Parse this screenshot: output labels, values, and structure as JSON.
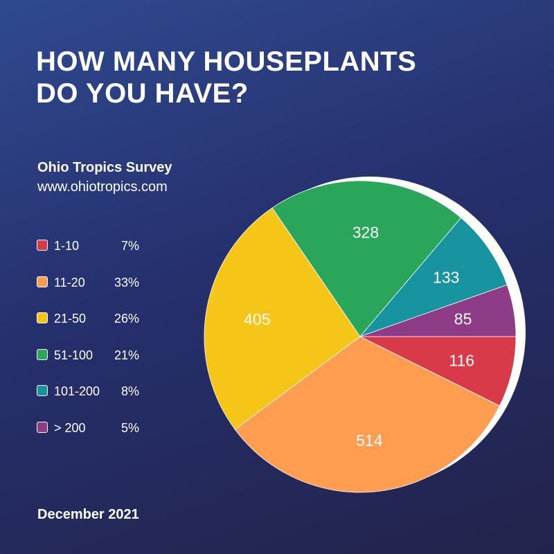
{
  "title_lines": [
    "HOW MANY HOUSEPLANTS",
    "DO YOU HAVE?"
  ],
  "source": {
    "name": "Ohio Tropics Survey",
    "url": "www.ohiotropics.com"
  },
  "footer_date": "December 2021",
  "colors": {
    "1-10": "#d93a4a",
    "11-20": "#ff9e50",
    "21-50": "#f5c518",
    "51-100": "#2aa65a",
    "101-200": "#1894a0",
    "> 200": "#8e3c88",
    "pie_backdrop": "#ffffff"
  },
  "legend": [
    {
      "label": "1-10",
      "percent": "7%"
    },
    {
      "label": "11-20",
      "percent": "33%"
    },
    {
      "label": "21-50",
      "percent": "26%"
    },
    {
      "label": "51-100",
      "percent": "21%"
    },
    {
      "label": "101-200",
      "percent": "8%"
    },
    {
      "label": "> 200",
      "percent": "5%"
    }
  ],
  "chart_data": {
    "type": "pie",
    "title": "HOW MANY HOUSEPLANTS DO YOU HAVE?",
    "categories": [
      "1-10",
      "11-20",
      "21-50",
      "51-100",
      "101-200",
      "> 200"
    ],
    "values": [
      116,
      514,
      405,
      328,
      133,
      85
    ],
    "percentages": [
      "7%",
      "33%",
      "26%",
      "21%",
      "8%",
      "5%"
    ],
    "legend_position": "left"
  }
}
